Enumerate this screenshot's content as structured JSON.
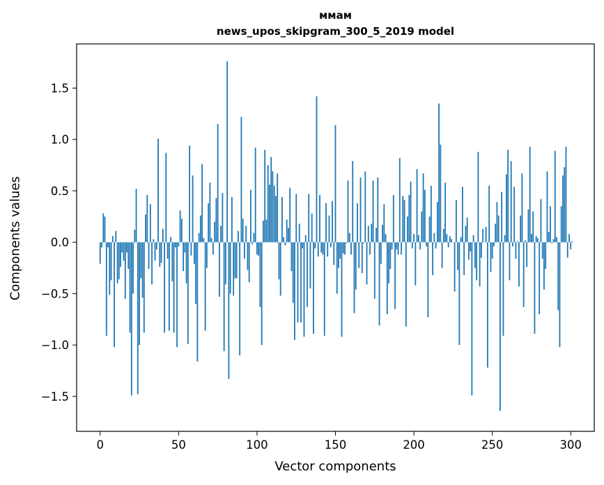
{
  "chart_data": {
    "type": "bar",
    "title": "ммам",
    "subtitle": "news_upos_skipgram_300_5_2019 model",
    "xlabel": "Vector components",
    "ylabel": "Components values",
    "xlim": [
      -15,
      315
    ],
    "ylim": [
      -1.84,
      1.93
    ],
    "xticks": [
      0,
      50,
      100,
      150,
      200,
      250,
      300
    ],
    "yticks": [
      -1.5,
      -1.0,
      -0.5,
      0.0,
      0.5,
      1.0,
      1.5
    ],
    "xtick_labels": [
      "0",
      "50",
      "100",
      "150",
      "200",
      "250",
      "300"
    ],
    "ytick_labels": [
      "−1.5",
      "−1.0",
      "−0.5",
      "0.0",
      "0.5",
      "1.0",
      "1.5"
    ],
    "grid": false,
    "bar_color": "#1f77b4",
    "values": [
      -0.21,
      -0.05,
      0.28,
      0.25,
      -0.91,
      -0.05,
      -0.51,
      -0.37,
      0.06,
      -1.02,
      0.11,
      -0.4,
      -0.36,
      -0.24,
      -0.1,
      -0.18,
      -0.55,
      -0.1,
      -0.26,
      -0.88,
      -1.49,
      -0.5,
      0.12,
      0.52,
      -1.48,
      -1.0,
      -0.35,
      -0.54,
      -0.88,
      0.27,
      0.46,
      -0.26,
      0.37,
      -0.41,
      0.03,
      -0.18,
      -0.07,
      1.01,
      -0.24,
      -0.2,
      0.13,
      -0.88,
      0.87,
      -0.16,
      -0.86,
      0.05,
      -0.38,
      -0.88,
      -0.05,
      -1.02,
      -0.04,
      0.31,
      0.23,
      -0.28,
      -0.1,
      -0.4,
      -0.99,
      0.94,
      -0.13,
      0.65,
      -0.21,
      -0.6,
      -1.16,
      0.09,
      0.26,
      0.76,
      0.04,
      -0.86,
      -0.25,
      0.38,
      0.58,
      0.04,
      -0.12,
      0.2,
      0.43,
      1.15,
      -0.53,
      0.16,
      0.48,
      -1.06,
      -0.41,
      1.76,
      -1.33,
      -0.5,
      0.44,
      -0.52,
      -0.35,
      -0.35,
      0.11,
      -1.1,
      1.22,
      0.23,
      -0.16,
      0.16,
      -0.27,
      -0.39,
      0.51,
      -0.02,
      0.09,
      0.92,
      -0.12,
      -0.13,
      -0.63,
      -1.0,
      0.21,
      0.9,
      0.22,
      0.75,
      0.56,
      0.83,
      0.69,
      0.55,
      0.45,
      0.67,
      -0.36,
      -0.52,
      0.44,
      0.05,
      -0.03,
      0.22,
      0.14,
      0.53,
      -0.28,
      -0.59,
      -0.95,
      0.47,
      -0.78,
      0.18,
      -0.78,
      -0.06,
      -0.92,
      0.07,
      -0.63,
      0.47,
      -0.45,
      0.28,
      -0.89,
      -0.06,
      1.42,
      -0.14,
      0.46,
      -0.1,
      -0.12,
      -0.91,
      0.38,
      -0.14,
      0.26,
      -0.05,
      0.4,
      -0.22,
      1.14,
      -0.5,
      -0.25,
      -0.16,
      -0.92,
      -0.11,
      -0.12,
      -0.01,
      0.6,
      0.09,
      -0.12,
      0.79,
      -0.69,
      -0.46,
      0.38,
      -0.25,
      0.63,
      -0.3,
      -0.01,
      0.69,
      -0.41,
      0.16,
      -0.12,
      0.18,
      0.6,
      -0.55,
      0.14,
      0.63,
      -0.81,
      -0.21,
      0.17,
      0.37,
      0.08,
      -0.7,
      -0.4,
      -0.26,
      -0.07,
      0.46,
      -0.65,
      -0.07,
      -0.12,
      0.82,
      -0.12,
      0.45,
      0.41,
      -0.82,
      0.25,
      0.46,
      0.59,
      -0.06,
      0.08,
      -0.42,
      0.71,
      0.07,
      -0.07,
      0.3,
      0.67,
      0.51,
      -0.04,
      -0.73,
      0.25,
      0.55,
      -0.32,
      0.09,
      -0.06,
      0.39,
      1.35,
      0.95,
      -0.25,
      0.13,
      0.58,
      0.08,
      -0.05,
      0.06,
      0.03,
      0.0,
      -0.48,
      0.41,
      -0.27,
      -1.0,
      0.05,
      0.54,
      -0.32,
      0.16,
      0.24,
      -0.17,
      -0.09,
      -1.49,
      0.07,
      -0.25,
      -0.37,
      0.88,
      -0.43,
      -0.15,
      0.13,
      0.0,
      0.15,
      -1.22,
      0.55,
      -0.29,
      -0.16,
      -0.04,
      0.18,
      0.39,
      0.26,
      -1.64,
      0.49,
      -0.91,
      0.07,
      0.66,
      0.9,
      -0.37,
      0.79,
      -0.04,
      0.54,
      -0.16,
      0.01,
      -0.43,
      0.26,
      0.67,
      -0.63,
      0.02,
      -0.24,
      0.32,
      0.93,
      0.08,
      0.3,
      -0.89,
      0.06,
      0.04,
      -0.7,
      0.42,
      -0.16,
      -0.46,
      -0.26,
      0.69,
      0.1,
      0.35,
      -0.01,
      0.03,
      0.89,
      0.05,
      -0.66,
      -1.02,
      0.35,
      0.65,
      0.73,
      0.93,
      -0.15,
      0.08,
      -0.07,
      0.01
    ]
  }
}
